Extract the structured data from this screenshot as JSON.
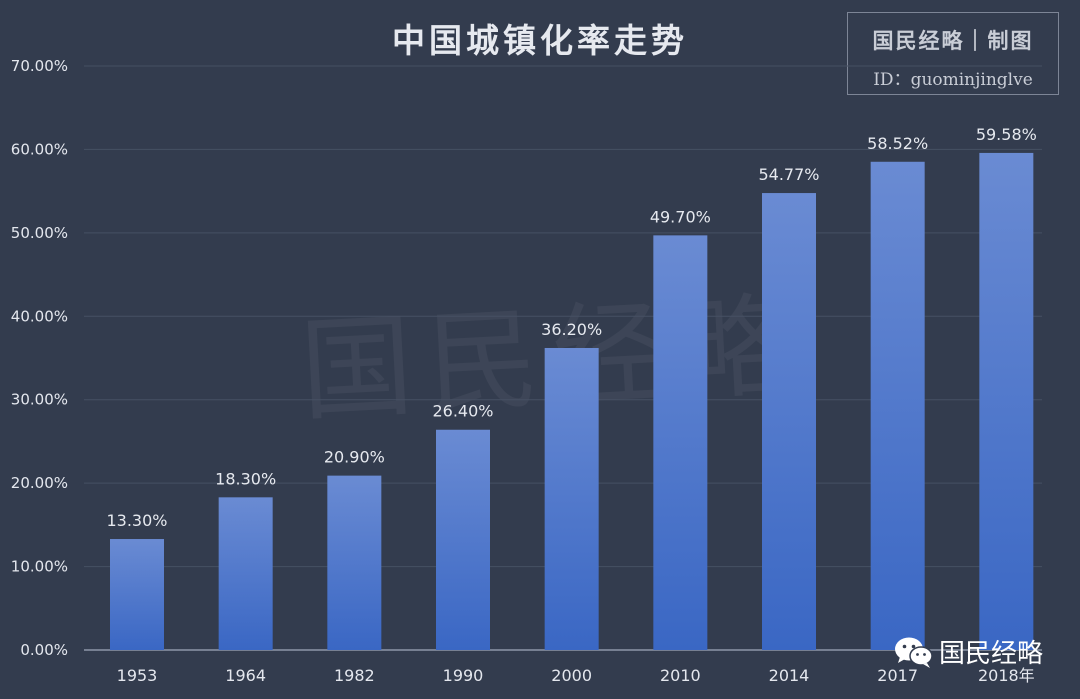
{
  "header": {
    "title": "中国城镇化率走势"
  },
  "brand": {
    "line1": "国民经略｜制图",
    "line2": "ID：guominjinglve",
    "watermark": "国民经略",
    "wechat_label": "国民经略",
    "wechat_icon": "wechat-icon"
  },
  "colors": {
    "background": "#333c4e",
    "bar_top": "#6a8bd3",
    "bar_bottom": "#3a67c4",
    "grid": "#465063",
    "axis_text": "#e4e7ee",
    "label_text": "#e6e9ef"
  },
  "chart_data": {
    "type": "bar",
    "categories": [
      "1953",
      "1964",
      "1982",
      "1990",
      "2000",
      "2010",
      "2014",
      "2017",
      "2018年"
    ],
    "values": [
      13.3,
      18.3,
      20.9,
      26.4,
      36.2,
      49.7,
      54.77,
      58.52,
      59.58
    ],
    "value_labels": [
      "13.30%",
      "18.30%",
      "20.90%",
      "26.40%",
      "36.20%",
      "49.70%",
      "54.77%",
      "58.52%",
      "59.58%"
    ],
    "title": "中国城镇化率走势",
    "xlabel": "",
    "ylabel": "",
    "ylim": [
      0,
      70
    ],
    "yticks": [
      0,
      10,
      20,
      30,
      40,
      50,
      60,
      70
    ],
    "ytick_labels": [
      "0.00%",
      "10.00%",
      "20.00%",
      "30.00%",
      "40.00%",
      "50.00%",
      "60.00%",
      "70.00%"
    ],
    "grid": true,
    "legend": "none"
  }
}
